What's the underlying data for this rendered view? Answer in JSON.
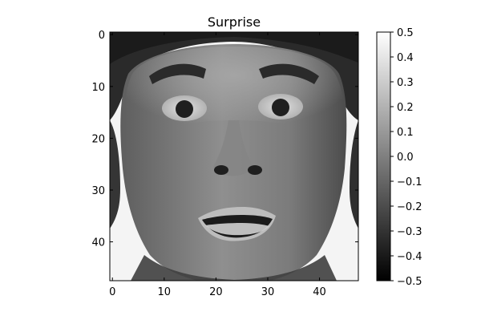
{
  "chart_data": {
    "type": "heatmap",
    "title": "Surprise",
    "xlabel": "",
    "ylabel": "",
    "image_size": [
      48,
      48
    ],
    "x_ticks": [
      0,
      10,
      20,
      30,
      40
    ],
    "y_ticks": [
      0,
      10,
      20,
      30,
      40
    ],
    "xlim": [
      -0.5,
      47.5
    ],
    "ylim": [
      47.5,
      -0.5
    ],
    "colormap": "gray",
    "colorbar": {
      "min": -0.5,
      "max": 0.5,
      "ticks": [
        0.5,
        0.4,
        0.3,
        0.2,
        0.1,
        0.0,
        -0.1,
        -0.2,
        -0.3,
        -0.4,
        -0.5
      ],
      "tick_labels": [
        "0.5",
        "0.4",
        "0.3",
        "0.2",
        "0.1",
        "0.0",
        "−0.1",
        "−0.2",
        "−0.3",
        "−0.4",
        "−0.5"
      ]
    }
  }
}
